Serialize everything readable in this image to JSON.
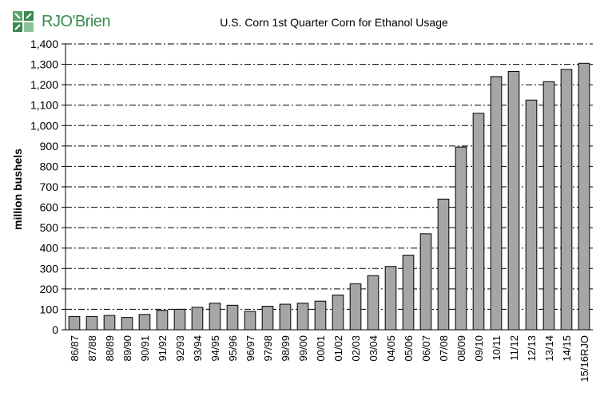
{
  "logo": {
    "text": "RJO'Brien"
  },
  "chart_data": {
    "type": "bar",
    "title": "U.S. Corn 1st Quarter Corn for Ethanol Usage",
    "xlabel": "",
    "ylabel": "million bushels",
    "ylim": [
      0,
      1400
    ],
    "yticks": [
      0,
      100,
      200,
      300,
      400,
      500,
      600,
      700,
      800,
      900,
      1000,
      1100,
      1200,
      1300,
      1400
    ],
    "ytick_labels": [
      "0",
      "100",
      "200",
      "300",
      "400",
      "500",
      "600",
      "700",
      "800",
      "900",
      "1,000",
      "1,100",
      "1,200",
      "1,300",
      "1,400"
    ],
    "grid": "horizontal dash-dot",
    "bar_color": "#a6a6a6",
    "categories": [
      "86/87",
      "87/88",
      "88/89",
      "89/90",
      "90/91",
      "91/92",
      "92/93",
      "93/94",
      "94/95",
      "95/96",
      "96/97",
      "97/98",
      "98/99",
      "99/00",
      "00/01",
      "01/02",
      "02/03",
      "03/04",
      "04/05",
      "05/06",
      "06/07",
      "07/08",
      "08/09",
      "09/10",
      "10/11",
      "11/12",
      "12/13",
      "13/14",
      "14/15",
      "15/16RJO"
    ],
    "values": [
      65,
      65,
      70,
      60,
      75,
      95,
      100,
      110,
      130,
      120,
      90,
      115,
      125,
      130,
      140,
      170,
      225,
      265,
      310,
      365,
      470,
      640,
      895,
      1060,
      1240,
      1265,
      1125,
      1215,
      1275,
      1305
    ]
  }
}
